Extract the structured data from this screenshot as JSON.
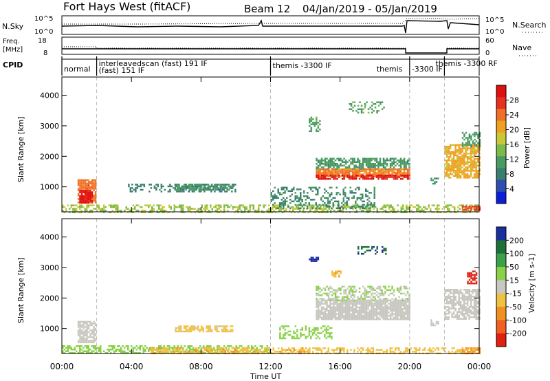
{
  "header": {
    "title": "Fort Hays West (fitACF)",
    "beam": "Beam 12",
    "date_range": "04/Jan/2019 - 05/Jan/2019"
  },
  "aux_panels": {
    "nsky": {
      "label": "N.Sky",
      "left_ticks": [
        "10^5",
        "10^0"
      ],
      "right_ticks": [
        "10^5",
        "10^0"
      ],
      "right_label": "N.Search"
    },
    "freq": {
      "label_lines": [
        "Freq.",
        "[MHz]"
      ],
      "left_ticks": [
        "18",
        "8"
      ],
      "right_ticks": [
        "60",
        "0"
      ],
      "right_label": "Nave"
    },
    "cpid": {
      "label": "CPID",
      "segments": [
        {
          "start": 0.0,
          "end": 2.0,
          "lines": [
            "normal"
          ]
        },
        {
          "start": 2.0,
          "end": 12.0,
          "lines": [
            "interleavedscan (fast) 191 IF",
            "(fast) 151 IF"
          ]
        },
        {
          "start": 12.0,
          "end": 20.0,
          "lines": [
            "themis -3300 IF",
            "themis"
          ]
        },
        {
          "start": 20.0,
          "end": 22.0,
          "lines": [
            "-3300 IF"
          ]
        },
        {
          "start": 22.0,
          "end": 24.0,
          "lines": [
            "themis -3300 RF"
          ]
        }
      ]
    }
  },
  "x_axis": {
    "label": "Time UT",
    "ticks": [
      "00:00",
      "04:00",
      "08:00",
      "12:00",
      "16:00",
      "20:00",
      "00:00"
    ]
  },
  "panels": [
    {
      "ylabel": "Slant Range [km]",
      "yticks": [
        "1000",
        "2000",
        "3000",
        "4000"
      ],
      "colorbar_label": "Power [dB]",
      "colorbar_ticks": [
        "4",
        "8",
        "12",
        "16",
        "20",
        "24",
        "28"
      ]
    },
    {
      "ylabel": "Slant Range [km]",
      "yticks": [
        "1000",
        "2000",
        "3000",
        "4000"
      ],
      "colorbar_label": "Velocity [m s-1]",
      "colorbar_ticks": [
        "200",
        "100",
        "50",
        "15",
        "-15",
        "-50",
        "-100",
        "-200"
      ]
    }
  ],
  "colors": {
    "power_scale": [
      "#0b1fd9",
      "#2d4fb0",
      "#3a7e6e",
      "#4a9a62",
      "#7bbb4a",
      "#c8c83a",
      "#f0a020",
      "#f07028",
      "#e83020",
      "#e01010"
    ],
    "velocity_scale": [
      "#1a2fa0",
      "#1e6f3a",
      "#3aa04a",
      "#8ad048",
      "#c8c8c0",
      "#f0c040",
      "#f09020",
      "#f06020",
      "#e02010"
    ]
  },
  "chart_data": [
    {
      "type": "heatmap",
      "quantity": "Power",
      "unit": "dB",
      "x_range_hours": [
        0,
        24
      ],
      "y_range_km": [
        180,
        4600
      ],
      "color_range": [
        0,
        32
      ],
      "dashed_lines_hours": [
        2.0,
        12.0,
        20.0,
        22.0
      ],
      "echo_regions": [
        {
          "t0": 0.0,
          "t1": 24.0,
          "r0": 180,
          "r1": 420,
          "value": 16,
          "density": 0.55
        },
        {
          "t0": 0.9,
          "t1": 1.9,
          "r0": 500,
          "r1": 1250,
          "value": 24,
          "density": 0.85
        },
        {
          "t0": 1.0,
          "t1": 1.7,
          "r0": 500,
          "r1": 900,
          "value": 30,
          "density": 0.9
        },
        {
          "t0": 3.8,
          "t1": 10.0,
          "r0": 850,
          "r1": 1100,
          "value": 8,
          "density": 0.45
        },
        {
          "t0": 6.5,
          "t1": 9.8,
          "r0": 900,
          "r1": 1100,
          "value": 10,
          "density": 0.7
        },
        {
          "t0": 12.0,
          "t1": 18.0,
          "r0": 300,
          "r1": 1000,
          "value": 9,
          "density": 0.35
        },
        {
          "t0": 14.6,
          "t1": 20.0,
          "r0": 1600,
          "r1": 1950,
          "value": 11,
          "density": 0.65
        },
        {
          "t0": 14.6,
          "t1": 20.0,
          "r0": 1350,
          "r1": 1600,
          "value": 23,
          "density": 0.9
        },
        {
          "t0": 14.6,
          "t1": 20.0,
          "r0": 1250,
          "r1": 1400,
          "value": 29,
          "density": 0.8
        },
        {
          "t0": 14.2,
          "t1": 14.8,
          "r0": 2800,
          "r1": 3300,
          "value": 12,
          "density": 0.5
        },
        {
          "t0": 16.5,
          "t1": 18.5,
          "r0": 3450,
          "r1": 3800,
          "value": 12,
          "density": 0.3
        },
        {
          "t0": 21.2,
          "t1": 21.6,
          "r0": 1100,
          "r1": 1300,
          "value": 10,
          "density": 0.6
        },
        {
          "t0": 22.0,
          "t1": 24.0,
          "r0": 1300,
          "r1": 2400,
          "value": 20,
          "density": 0.75
        },
        {
          "t0": 23.0,
          "t1": 24.0,
          "r0": 2300,
          "r1": 2800,
          "value": 11,
          "density": 0.6
        },
        {
          "t0": 23.0,
          "t1": 24.0,
          "r0": 250,
          "r1": 380,
          "value": 26,
          "density": 0.8
        }
      ]
    },
    {
      "type": "heatmap",
      "quantity": "Velocity",
      "unit": "m s-1",
      "x_range_hours": [
        0,
        24
      ],
      "y_range_km": [
        180,
        4600
      ],
      "color_range": [
        -200,
        200
      ],
      "dashed_lines_hours": [
        2.0,
        12.0,
        20.0,
        22.0
      ],
      "echo_regions": [
        {
          "t0": 0.0,
          "t1": 12.0,
          "r0": 180,
          "r1": 450,
          "value": 40,
          "density": 0.55
        },
        {
          "t0": 5.0,
          "t1": 14.0,
          "r0": 180,
          "r1": 380,
          "value": -60,
          "density": 0.6
        },
        {
          "t0": 14.0,
          "t1": 24.0,
          "r0": 180,
          "r1": 380,
          "value": -40,
          "density": 0.45
        },
        {
          "t0": 0.9,
          "t1": 1.9,
          "r0": 550,
          "r1": 1250,
          "value": 0,
          "density": 0.85
        },
        {
          "t0": 6.5,
          "t1": 9.8,
          "r0": 900,
          "r1": 1100,
          "value": -30,
          "density": 0.7
        },
        {
          "t0": 12.5,
          "t1": 15.5,
          "r0": 700,
          "r1": 1100,
          "value": 50,
          "density": 0.4
        },
        {
          "t0": 14.6,
          "t1": 20.0,
          "r0": 1300,
          "r1": 1950,
          "value": 0,
          "density": 0.9
        },
        {
          "t0": 14.6,
          "t1": 20.0,
          "r0": 1900,
          "r1": 2400,
          "value": 20,
          "density": 0.45
        },
        {
          "t0": 14.2,
          "t1": 14.7,
          "r0": 3200,
          "r1": 3350,
          "value": 200,
          "density": 0.7
        },
        {
          "t0": 17.0,
          "t1": 18.6,
          "r0": 3450,
          "r1": 3700,
          "value": 150,
          "density": 0.35
        },
        {
          "t0": 15.5,
          "t1": 16.0,
          "r0": 2700,
          "r1": 2900,
          "value": -60,
          "density": 0.6
        },
        {
          "t0": 21.2,
          "t1": 21.6,
          "r0": 1100,
          "r1": 1300,
          "value": 0,
          "density": 0.6
        },
        {
          "t0": 22.0,
          "t1": 24.0,
          "r0": 1300,
          "r1": 2300,
          "value": 0,
          "density": 0.7
        },
        {
          "t0": 23.3,
          "t1": 23.8,
          "r0": 2500,
          "r1": 2900,
          "value": -180,
          "density": 0.7
        },
        {
          "t0": 23.0,
          "t1": 24.0,
          "r0": 200,
          "r1": 380,
          "value": -70,
          "density": 0.8
        }
      ]
    }
  ]
}
